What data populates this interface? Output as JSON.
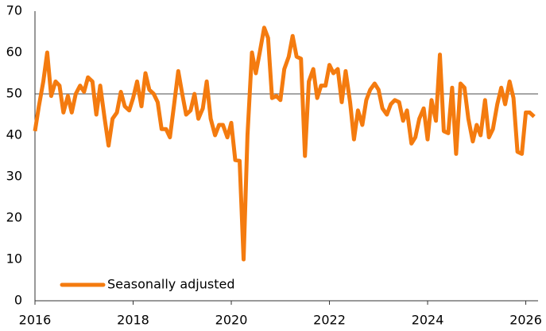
{
  "chart_data": {
    "type": "line",
    "x": [
      2016.0,
      2016.08,
      2016.17,
      2016.25,
      2016.33,
      2016.42,
      2016.5,
      2016.58,
      2016.67,
      2016.75,
      2016.83,
      2016.92,
      2017.0,
      2017.08,
      2017.17,
      2017.25,
      2017.33,
      2017.42,
      2017.5,
      2017.58,
      2017.67,
      2017.75,
      2017.83,
      2017.92,
      2018.0,
      2018.08,
      2018.17,
      2018.25,
      2018.33,
      2018.42,
      2018.5,
      2018.58,
      2018.67,
      2018.75,
      2018.83,
      2018.92,
      2019.0,
      2019.08,
      2019.17,
      2019.25,
      2019.33,
      2019.42,
      2019.5,
      2019.58,
      2019.67,
      2019.75,
      2019.83,
      2019.92,
      2020.0,
      2020.08,
      2020.17,
      2020.25,
      2020.33,
      2020.42,
      2020.5,
      2020.58,
      2020.67,
      2020.75,
      2020.83,
      2020.92,
      2021.0,
      2021.08,
      2021.17,
      2021.25,
      2021.33,
      2021.42,
      2021.5,
      2021.58,
      2021.67,
      2021.75,
      2021.83,
      2021.92,
      2022.0,
      2022.08,
      2022.17,
      2022.25,
      2022.33,
      2022.42,
      2022.5,
      2022.58,
      2022.67,
      2022.75,
      2022.83,
      2022.92,
      2023.0,
      2023.08,
      2023.17,
      2023.25,
      2023.33,
      2023.42,
      2023.5,
      2023.58,
      2023.67,
      2023.75,
      2023.83,
      2023.92,
      2024.0,
      2024.08,
      2024.17,
      2024.25,
      2024.33,
      2024.42,
      2024.5,
      2024.58,
      2024.67,
      2024.75,
      2024.83,
      2024.92,
      2025.0,
      2025.08,
      2025.17,
      2025.25,
      2025.33,
      2025.42,
      2025.5,
      2025.58,
      2025.67,
      2025.75,
      2025.83,
      2025.92,
      2026.0,
      2026.08,
      2026.17
    ],
    "series": [
      {
        "name": "Seasonally adjusted",
        "color": "#f47b0f",
        "values": [
          41,
          47,
          53,
          60,
          49.5,
          53,
          52,
          45.5,
          49.5,
          45.5,
          50,
          52,
          50.5,
          54,
          53,
          45,
          52,
          44,
          37.5,
          44,
          45.5,
          50.5,
          47,
          46,
          49,
          53,
          47,
          55,
          51,
          50,
          48,
          41.5,
          41.5,
          39.5,
          47,
          55.5,
          50,
          45,
          46,
          50,
          44,
          46.5,
          53,
          44,
          40,
          42.5,
          42.5,
          39.5,
          43,
          34,
          33.8,
          10,
          40,
          60,
          55,
          60,
          66,
          63.5,
          49,
          49.5,
          48.5,
          56,
          59,
          64,
          59,
          58.5,
          35,
          53,
          56,
          49,
          52,
          52,
          57,
          55,
          56,
          48,
          55.5,
          48,
          39,
          46,
          42.5,
          48.5,
          51,
          52.5,
          51,
          46.5,
          45,
          47.5,
          48.5,
          48,
          43.5,
          46,
          38,
          39.5,
          44,
          46.5,
          39,
          48.5,
          43.5,
          59.5,
          41,
          40.5,
          51.5,
          35.5,
          52.5,
          51.5,
          44,
          38.5,
          42.5,
          40,
          48.5,
          39.5,
          41.5,
          47.5,
          51.5,
          47.5,
          53,
          49,
          36,
          35.5,
          45.5,
          45.5,
          44.5
        ]
      }
    ],
    "xlim": [
      2016,
      2026.25
    ],
    "xticks": [
      2016,
      2018,
      2020,
      2022,
      2024,
      2026
    ],
    "ylim": [
      0,
      70
    ],
    "yticks": [
      0,
      10,
      20,
      30,
      40,
      50,
      60,
      70
    ],
    "reference_line": 50,
    "legend": "lower left"
  }
}
